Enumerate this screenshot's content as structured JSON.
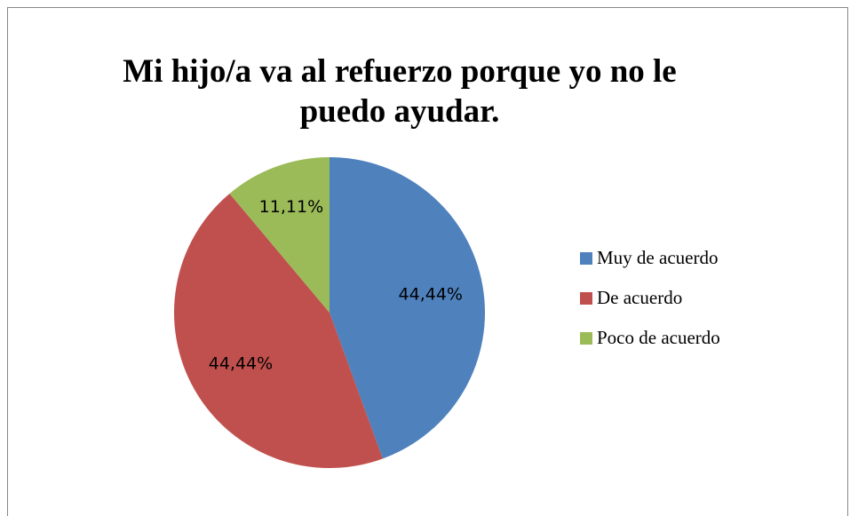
{
  "chart_data": {
    "type": "pie",
    "title": "Mi hijo/a va al refuerzo porque yo no le puedo ayudar.",
    "categories": [
      "Muy de acuerdo",
      "De acuerdo",
      "Poco de acuerdo"
    ],
    "values": [
      44.44,
      44.44,
      11.11
    ],
    "value_labels": [
      "44,44%",
      "44,44%",
      "11,11%"
    ],
    "colors": [
      "#4f81bd",
      "#c0504d",
      "#9bbb59"
    ],
    "legend": "right"
  }
}
